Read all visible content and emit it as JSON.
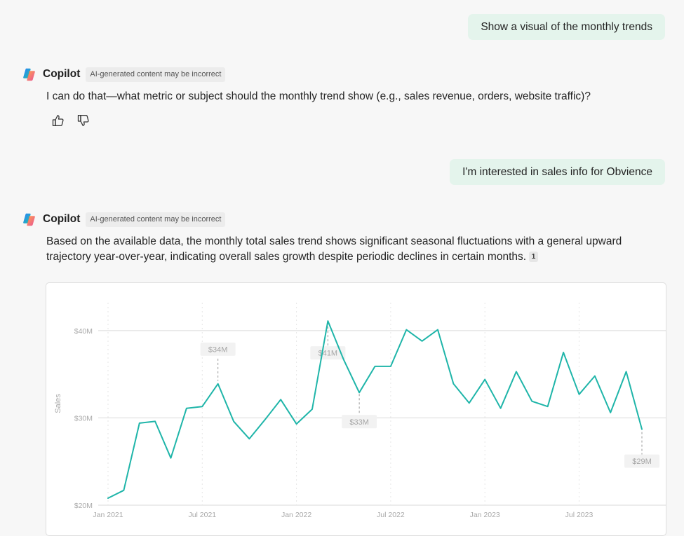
{
  "conversation": {
    "user_message_1": "Show a visual of the monthly trends",
    "copilot_name": "Copilot",
    "ai_badge": "AI-generated content may be incorrect",
    "reply_1": "I can do that—what metric or subject should the monthly trend show (e.g., sales revenue, orders, website traffic)?",
    "user_message_2": "I'm interested in sales info for Obvience",
    "reply_2": "Based on the available data, the monthly total sales trend shows significant seasonal fluctuations with a general upward trajectory year-over-year, indicating overall sales growth despite periodic declines in certain months.",
    "citation": "1"
  },
  "icons": {
    "logo": "copilot-logo-icon",
    "like": "thumbs-up-icon",
    "dislike": "thumbs-down-icon"
  },
  "colors": {
    "user_bubble": "#e4f4ec",
    "line": "#1fb5a9",
    "background": "#f7f7f7"
  },
  "chart_data": {
    "type": "line",
    "title": "",
    "xlabel": "",
    "ylabel": "Sales",
    "x_ticks": [
      "Jan 2021",
      "Jul 2021",
      "Jan 2022",
      "Jul 2022",
      "Jan 2023",
      "Jul 2023"
    ],
    "y_ticks": [
      "$20M",
      "$30M",
      "$40M"
    ],
    "ylim": [
      20,
      44
    ],
    "grid": true,
    "x": [
      "2021-01",
      "2021-02",
      "2021-03",
      "2021-04",
      "2021-05",
      "2021-06",
      "2021-07",
      "2021-08",
      "2021-09",
      "2021-10",
      "2021-11",
      "2021-12",
      "2022-01",
      "2022-02",
      "2022-03",
      "2022-04",
      "2022-05",
      "2022-06",
      "2022-07",
      "2022-08",
      "2022-09",
      "2022-10",
      "2022-11",
      "2022-12",
      "2023-01",
      "2023-02",
      "2023-03",
      "2023-04",
      "2023-05",
      "2023-06",
      "2023-07",
      "2023-08",
      "2023-09",
      "2023-10",
      "2023-11"
    ],
    "series": [
      {
        "values": [
          20.8,
          21.7,
          29.4,
          29.6,
          25.4,
          31.1,
          31.3,
          33.9,
          29.6,
          27.6,
          29.8,
          32.1,
          29.3,
          31.0,
          41.1,
          36.7,
          32.9,
          35.9,
          35.9,
          40.1,
          38.8,
          40.1,
          33.9,
          31.7,
          34.4,
          31.1,
          35.3,
          31.9,
          31.3,
          37.5,
          32.7,
          34.8,
          30.6,
          35.3,
          28.7
        ]
      }
    ],
    "annotations": [
      {
        "x": "2021-08",
        "label": "$34M"
      },
      {
        "x": "2022-03",
        "label": "$41M"
      },
      {
        "x": "2022-05",
        "label": "$33M"
      },
      {
        "x": "2023-11",
        "label": "$29M"
      }
    ]
  }
}
